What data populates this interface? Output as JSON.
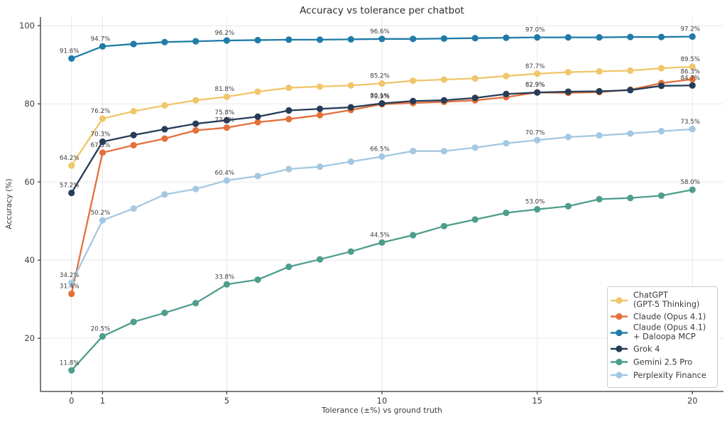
{
  "title": "Accuracy vs tolerance per chatbot",
  "axes": {
    "xlabel": "Tolerance (±%) vs ground truth",
    "ylabel": "Accuracy (%)"
  },
  "colors": {
    "spine": "#333333",
    "grid": "#e6e6e6",
    "tick_label": "#3c3c3c",
    "point_label": "#3b3b3b",
    "legend_border": "#cccccc",
    "background": "#ffffff"
  },
  "chart_data": {
    "type": "line",
    "x": [
      0,
      1,
      2,
      3,
      4,
      5,
      6,
      7,
      8,
      9,
      10,
      11,
      12,
      13,
      14,
      15,
      16,
      17,
      18,
      19,
      20
    ],
    "xticks": [
      0,
      1,
      5,
      10,
      15,
      20
    ],
    "yticks": [
      20,
      40,
      60,
      80,
      100
    ],
    "xlim": [
      -1.0,
      21.0
    ],
    "ylim": [
      6.4,
      102.2
    ],
    "grid": true,
    "legend_position": "lower-right",
    "series": [
      {
        "name": "ChatGPT (GPT-5 Thinking)",
        "legend_lines": [
          "ChatGPT",
          "(GPT-5 Thinking)"
        ],
        "color": "#F0C66A",
        "values": [
          64.2,
          76.2,
          78.1,
          79.6,
          80.9,
          81.8,
          83.1,
          84.1,
          84.4,
          84.7,
          85.2,
          85.9,
          86.2,
          86.5,
          87.1,
          87.7,
          88.1,
          88.3,
          88.5,
          89.1,
          89.5
        ],
        "point_labels": {
          "0": "64.2%",
          "1": "76.2%",
          "5": "81.8%",
          "10": "85.2%",
          "15": "87.7%",
          "20": "89.5%"
        }
      },
      {
        "name": "Claude (Opus 4.1)",
        "legend_lines": [
          "Claude (Opus 4.1)"
        ],
        "color": "#E4703C",
        "values": [
          31.4,
          67.5,
          69.4,
          71.1,
          73.2,
          73.9,
          75.3,
          76.1,
          77.1,
          78.4,
          79.9,
          80.2,
          80.5,
          80.9,
          81.7,
          82.9,
          82.8,
          83.0,
          83.6,
          85.3,
          86.3
        ],
        "point_labels": {
          "0": "31.4%",
          "1": "67.5%",
          "5": "73.9%",
          "10": "79.9%",
          "15": "82.9%",
          "20": "86.3%"
        }
      },
      {
        "name": "Claude (Opus 4.1) + Daloopa MCP",
        "legend_lines": [
          "Claude (Opus 4.1)",
          " + Daloopa MCP"
        ],
        "color": "#1F7BA8",
        "values": [
          91.6,
          94.7,
          95.3,
          95.8,
          96.0,
          96.2,
          96.3,
          96.4,
          96.4,
          96.5,
          96.6,
          96.6,
          96.7,
          96.8,
          96.9,
          97.0,
          97.0,
          97.0,
          97.1,
          97.1,
          97.2
        ],
        "point_labels": {
          "0": "91.6%",
          "1": "94.7%",
          "5": "96.2%",
          "10": "96.6%",
          "15": "97.0%",
          "20": "97.2%"
        }
      },
      {
        "name": "Grok 4",
        "legend_lines": [
          "Grok 4"
        ],
        "color": "#263C58",
        "values": [
          57.2,
          70.3,
          72.0,
          73.5,
          74.9,
          75.8,
          76.7,
          78.3,
          78.7,
          79.1,
          80.1,
          80.7,
          80.9,
          81.5,
          82.5,
          82.9,
          83.1,
          83.2,
          83.5,
          84.6,
          84.7
        ],
        "point_labels": {
          "0": "57.2%",
          "1": "70.3%",
          "5": "75.8%",
          "10": "80.1%",
          "15": "82.9%",
          "20": "84.7%"
        }
      },
      {
        "name": "Gemini 2.5 Pro",
        "legend_lines": [
          "Gemini 2.5 Pro"
        ],
        "color": "#4D9E8C",
        "values": [
          11.8,
          20.5,
          24.2,
          26.5,
          29.0,
          33.8,
          35.0,
          38.3,
          40.2,
          42.2,
          44.5,
          46.4,
          48.7,
          50.4,
          52.1,
          53.0,
          53.8,
          55.6,
          55.9,
          56.5,
          58.0
        ],
        "point_labels": {
          "0": "11.8%",
          "1": "20.5%",
          "5": "33.8%",
          "10": "44.5%",
          "15": "53.0%",
          "20": "58.0%"
        }
      },
      {
        "name": "Perplexity Finance",
        "legend_lines": [
          "Perplexity Finance"
        ],
        "color": "#A4C8E1",
        "values": [
          34.2,
          50.2,
          53.2,
          56.8,
          58.2,
          60.4,
          61.5,
          63.3,
          63.9,
          65.2,
          66.5,
          67.9,
          67.9,
          68.8,
          69.9,
          70.7,
          71.5,
          71.9,
          72.4,
          73.0,
          73.5
        ],
        "point_labels": {
          "0": "34.2%",
          "1": "50.2%",
          "5": "60.4%",
          "10": "66.5%",
          "15": "70.7%",
          "20": "73.5%"
        }
      }
    ]
  }
}
